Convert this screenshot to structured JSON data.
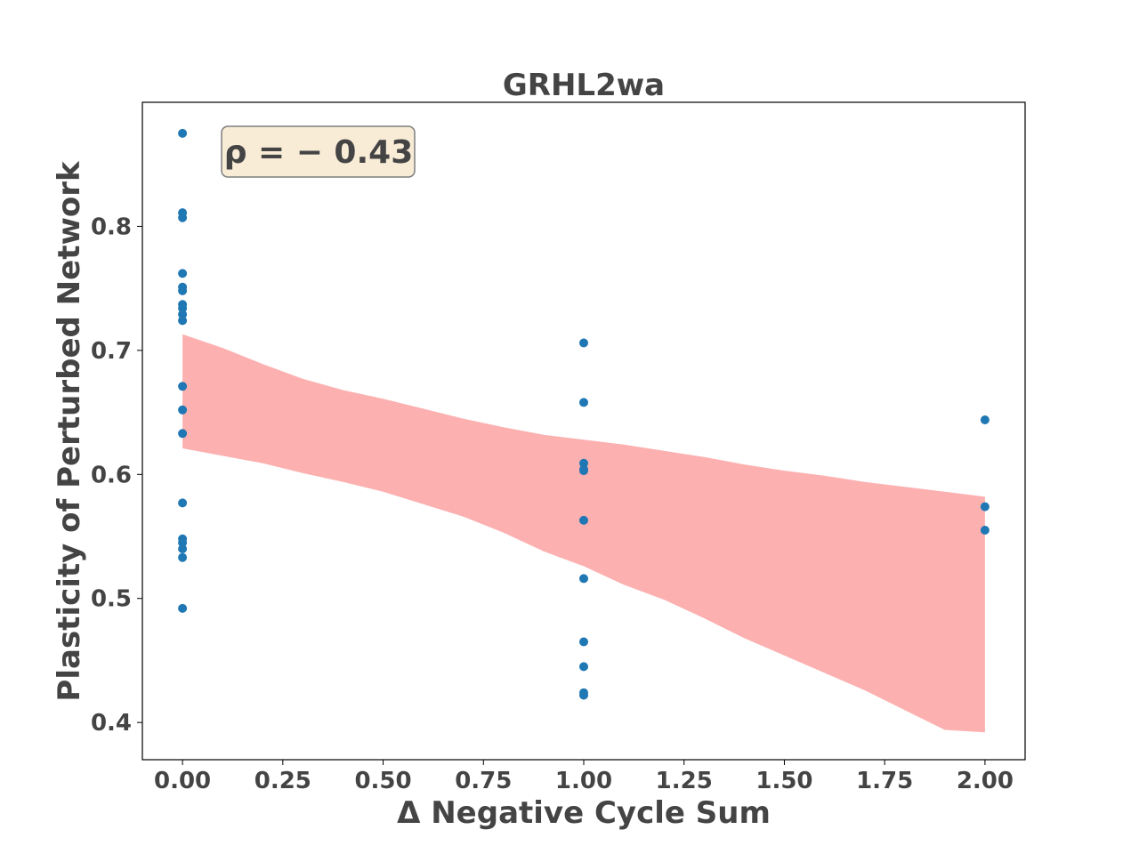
{
  "chart_data": {
    "type": "scatter",
    "title": "GRHL2wa",
    "xlabel": "Δ Negative Cycle Sum",
    "ylabel": "Plasticity of Perturbed Network",
    "xlim": [
      -0.1,
      2.1
    ],
    "ylim": [
      0.37,
      0.9
    ],
    "xticks": [
      0.0,
      0.25,
      0.5,
      0.75,
      1.0,
      1.25,
      1.5,
      1.75,
      2.0
    ],
    "xtick_labels": [
      "0.00",
      "0.25",
      "0.50",
      "0.75",
      "1.00",
      "1.25",
      "1.50",
      "1.75",
      "2.00"
    ],
    "yticks": [
      0.4,
      0.5,
      0.6,
      0.7,
      0.8
    ],
    "ytick_labels": [
      "0.4",
      "0.5",
      "0.6",
      "0.7",
      "0.8"
    ],
    "grid": false,
    "annotation": "ρ = − 0.43",
    "points_color": "#1f77b4",
    "band_color": "#fcb0b0",
    "points": [
      {
        "x": 0,
        "y": 0.875
      },
      {
        "x": 0,
        "y": 0.811
      },
      {
        "x": 0,
        "y": 0.807
      },
      {
        "x": 0,
        "y": 0.762
      },
      {
        "x": 0,
        "y": 0.751
      },
      {
        "x": 0,
        "y": 0.748
      },
      {
        "x": 0,
        "y": 0.737
      },
      {
        "x": 0,
        "y": 0.734
      },
      {
        "x": 0,
        "y": 0.729
      },
      {
        "x": 0,
        "y": 0.724
      },
      {
        "x": 0,
        "y": 0.671
      },
      {
        "x": 0,
        "y": 0.652
      },
      {
        "x": 0,
        "y": 0.633
      },
      {
        "x": 0,
        "y": 0.577
      },
      {
        "x": 0,
        "y": 0.548
      },
      {
        "x": 0,
        "y": 0.545
      },
      {
        "x": 0,
        "y": 0.54
      },
      {
        "x": 0,
        "y": 0.533
      },
      {
        "x": 0,
        "y": 0.492
      },
      {
        "x": 1,
        "y": 0.706
      },
      {
        "x": 1,
        "y": 0.658
      },
      {
        "x": 1,
        "y": 0.609
      },
      {
        "x": 1,
        "y": 0.604
      },
      {
        "x": 1,
        "y": 0.603
      },
      {
        "x": 1,
        "y": 0.563
      },
      {
        "x": 1,
        "y": 0.516
      },
      {
        "x": 1,
        "y": 0.465
      },
      {
        "x": 1,
        "y": 0.445
      },
      {
        "x": 1,
        "y": 0.424
      },
      {
        "x": 1,
        "y": 0.422
      },
      {
        "x": 2,
        "y": 0.644
      },
      {
        "x": 2,
        "y": 0.574
      },
      {
        "x": 2,
        "y": 0.555
      }
    ],
    "confidence_band": {
      "x": [
        0,
        0.1,
        0.2,
        0.3,
        0.4,
        0.5,
        0.6,
        0.7,
        0.8,
        0.9,
        1.0,
        1.1,
        1.2,
        1.3,
        1.4,
        1.5,
        1.6,
        1.7,
        1.8,
        1.9,
        2.0
      ],
      "upper": [
        0.713,
        0.702,
        0.689,
        0.677,
        0.668,
        0.661,
        0.653,
        0.645,
        0.638,
        0.632,
        0.628,
        0.624,
        0.619,
        0.614,
        0.608,
        0.603,
        0.599,
        0.594,
        0.59,
        0.586,
        0.582
      ],
      "lower": [
        0.621,
        0.615,
        0.609,
        0.601,
        0.594,
        0.586,
        0.576,
        0.566,
        0.553,
        0.538,
        0.526,
        0.511,
        0.499,
        0.484,
        0.468,
        0.454,
        0.44,
        0.426,
        0.41,
        0.394,
        0.392
      ]
    }
  }
}
